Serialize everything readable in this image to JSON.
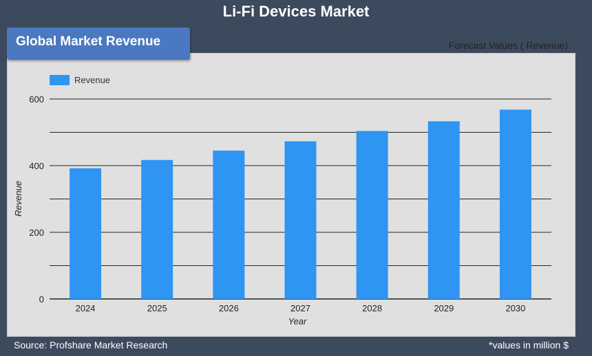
{
  "header": {
    "title": "Li-Fi Devices Market"
  },
  "badge": {
    "label": "Global Market Revenue"
  },
  "subtitle": "Forecast Values ( Revenue)",
  "footer": {
    "source": "Source: Profshare Market Research",
    "note": "*values in million $"
  },
  "colors": {
    "bar": "#2e95f2",
    "panel": "#e0e0e0",
    "background": "#3c4a5e"
  },
  "chart_data": {
    "type": "bar",
    "title": "Li-Fi Devices Market",
    "categories": [
      "2024",
      "2025",
      "2026",
      "2027",
      "2028",
      "2029",
      "2030"
    ],
    "series": [
      {
        "name": "Revenue",
        "values": [
          392,
          417,
          445,
          473,
          504,
          533,
          568
        ]
      }
    ],
    "xlabel": "Year",
    "ylabel": "Revenue",
    "ylim": [
      0,
      600
    ],
    "yticks": [
      0,
      200,
      400,
      600
    ],
    "grid": true,
    "legend": "top-left"
  }
}
